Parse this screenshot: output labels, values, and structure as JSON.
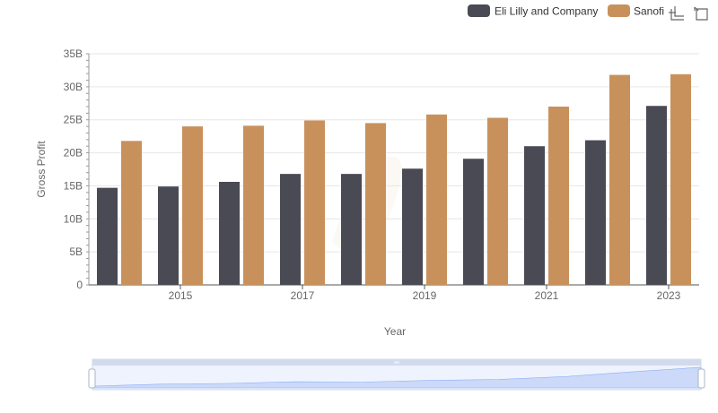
{
  "chart_data": {
    "type": "bar",
    "title": "",
    "xlabel": "Year",
    "ylabel": "Gross Profit",
    "ylim": [
      0,
      35000000000
    ],
    "yticks": [
      "0",
      "5B",
      "10B",
      "15B",
      "20B",
      "25B",
      "30B",
      "35B"
    ],
    "xtick_labels": [
      "2015",
      "2017",
      "2019",
      "2021",
      "2023"
    ],
    "categories": [
      "2014",
      "2015",
      "2016",
      "2017",
      "2018",
      "2019",
      "2020",
      "2021",
      "2022",
      "2023"
    ],
    "series": [
      {
        "name": "Eli Lilly and Company",
        "color": "#4a4a55",
        "values": [
          14700000000,
          14900000000,
          15600000000,
          16800000000,
          16800000000,
          17600000000,
          19100000000,
          21000000000,
          21900000000,
          27100000000
        ]
      },
      {
        "name": "Sanofi",
        "color": "#c8915c",
        "values": [
          21800000000,
          24000000000,
          24100000000,
          24900000000,
          24500000000,
          25800000000,
          25300000000,
          27000000000,
          31800000000,
          31900000000
        ]
      }
    ],
    "grid": true,
    "legend": "top-right"
  },
  "toolbox": {
    "icons": [
      "zoom-icon",
      "restore-icon"
    ]
  }
}
